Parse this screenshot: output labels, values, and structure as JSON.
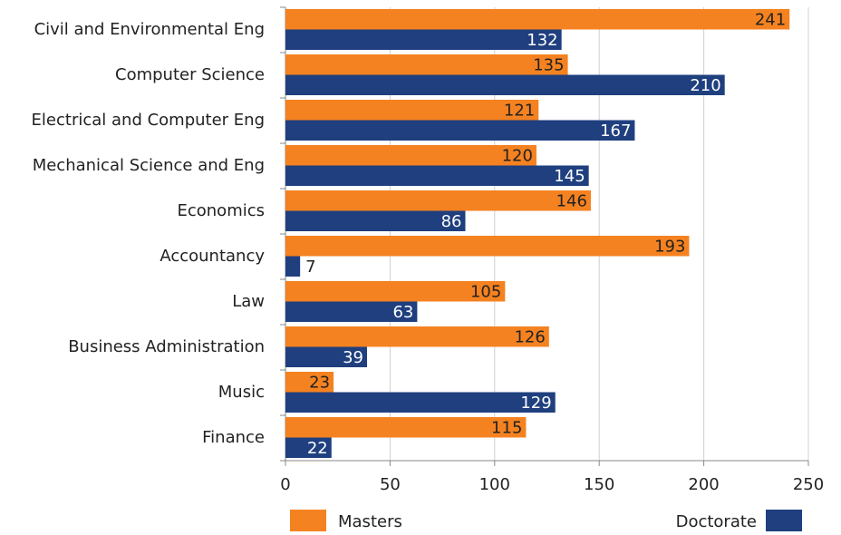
{
  "chart_data": {
    "type": "bar",
    "orientation": "horizontal",
    "categories": [
      "Civil and Environmental Eng",
      "Computer Science",
      "Electrical and Computer Eng",
      "Mechanical Science and Eng",
      "Economics",
      "Accountancy",
      "Law",
      "Business Administration",
      "Music",
      "Finance"
    ],
    "series": [
      {
        "name": "Masters",
        "color": "#f58220",
        "values": [
          241,
          135,
          121,
          120,
          146,
          193,
          105,
          126,
          23,
          115
        ]
      },
      {
        "name": "Doctorate",
        "color": "#1f3f7f",
        "values": [
          132,
          210,
          167,
          145,
          86,
          7,
          63,
          39,
          129,
          22
        ]
      }
    ],
    "xlim": [
      0,
      250
    ],
    "xticks": [
      0,
      50,
      100,
      150,
      200,
      250
    ],
    "grid": true,
    "legend": "bottom"
  }
}
